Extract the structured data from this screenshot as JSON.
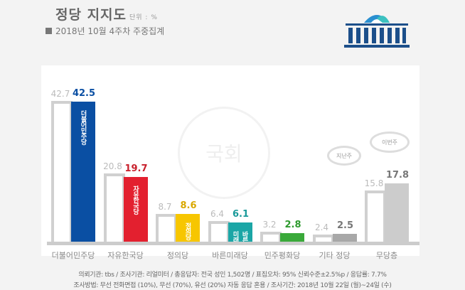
{
  "header": {
    "title": "정당 지지도",
    "unit": "단위 : %",
    "subtitle": "2018년 10월 4주차 주중집계"
  },
  "chart_data": {
    "type": "bar",
    "title": "정당 지지도",
    "categories": [
      "더불어민주당",
      "자유한국당",
      "정의당",
      "바른미래당",
      "민주평화당",
      "기타 정당",
      "무당층"
    ],
    "series": [
      {
        "name": "지난주",
        "values": [
          42.7,
          20.8,
          8.7,
          6.4,
          3.2,
          2.4,
          15.8
        ]
      },
      {
        "name": "이번주",
        "values": [
          42.5,
          19.7,
          8.6,
          6.1,
          2.8,
          2.5,
          17.8
        ]
      }
    ],
    "ylim": [
      0,
      45
    ],
    "grid": false,
    "legend": "top-right",
    "colors": {
      "prev_border": "#d0d0d0",
      "current": [
        "#0a4fa3",
        "#e3202f",
        "#f7c600",
        "#1ba6a6",
        "#3aa93a",
        "#a8a8a8",
        "#cccccc"
      ],
      "current_label": [
        "#0a4fa3",
        "#c8202c",
        "#d9a800",
        "#1a9a9a",
        "#2e9a2e",
        "#777777",
        "#777777"
      ]
    },
    "logos": [
      "더불어민주당",
      "자유한국당",
      "정의당",
      "바른미래",
      "",
      "",
      ""
    ]
  },
  "footer": {
    "line1": "의뢰기관: tbs / 조사기관: 리얼미터 / 총응답자: 전국 성인 1,502명 / 표집오차: 95% 신뢰수준±2.5%p / 응답률: 7.7%",
    "line2": "조사방법: 무선 전화면접 (10%), 무선 (70%), 유선 (20%) 자동 응답 혼용 / 조사기간: 2018년 10월 22일 (월)~24일 (수)"
  },
  "watermark": "국회"
}
